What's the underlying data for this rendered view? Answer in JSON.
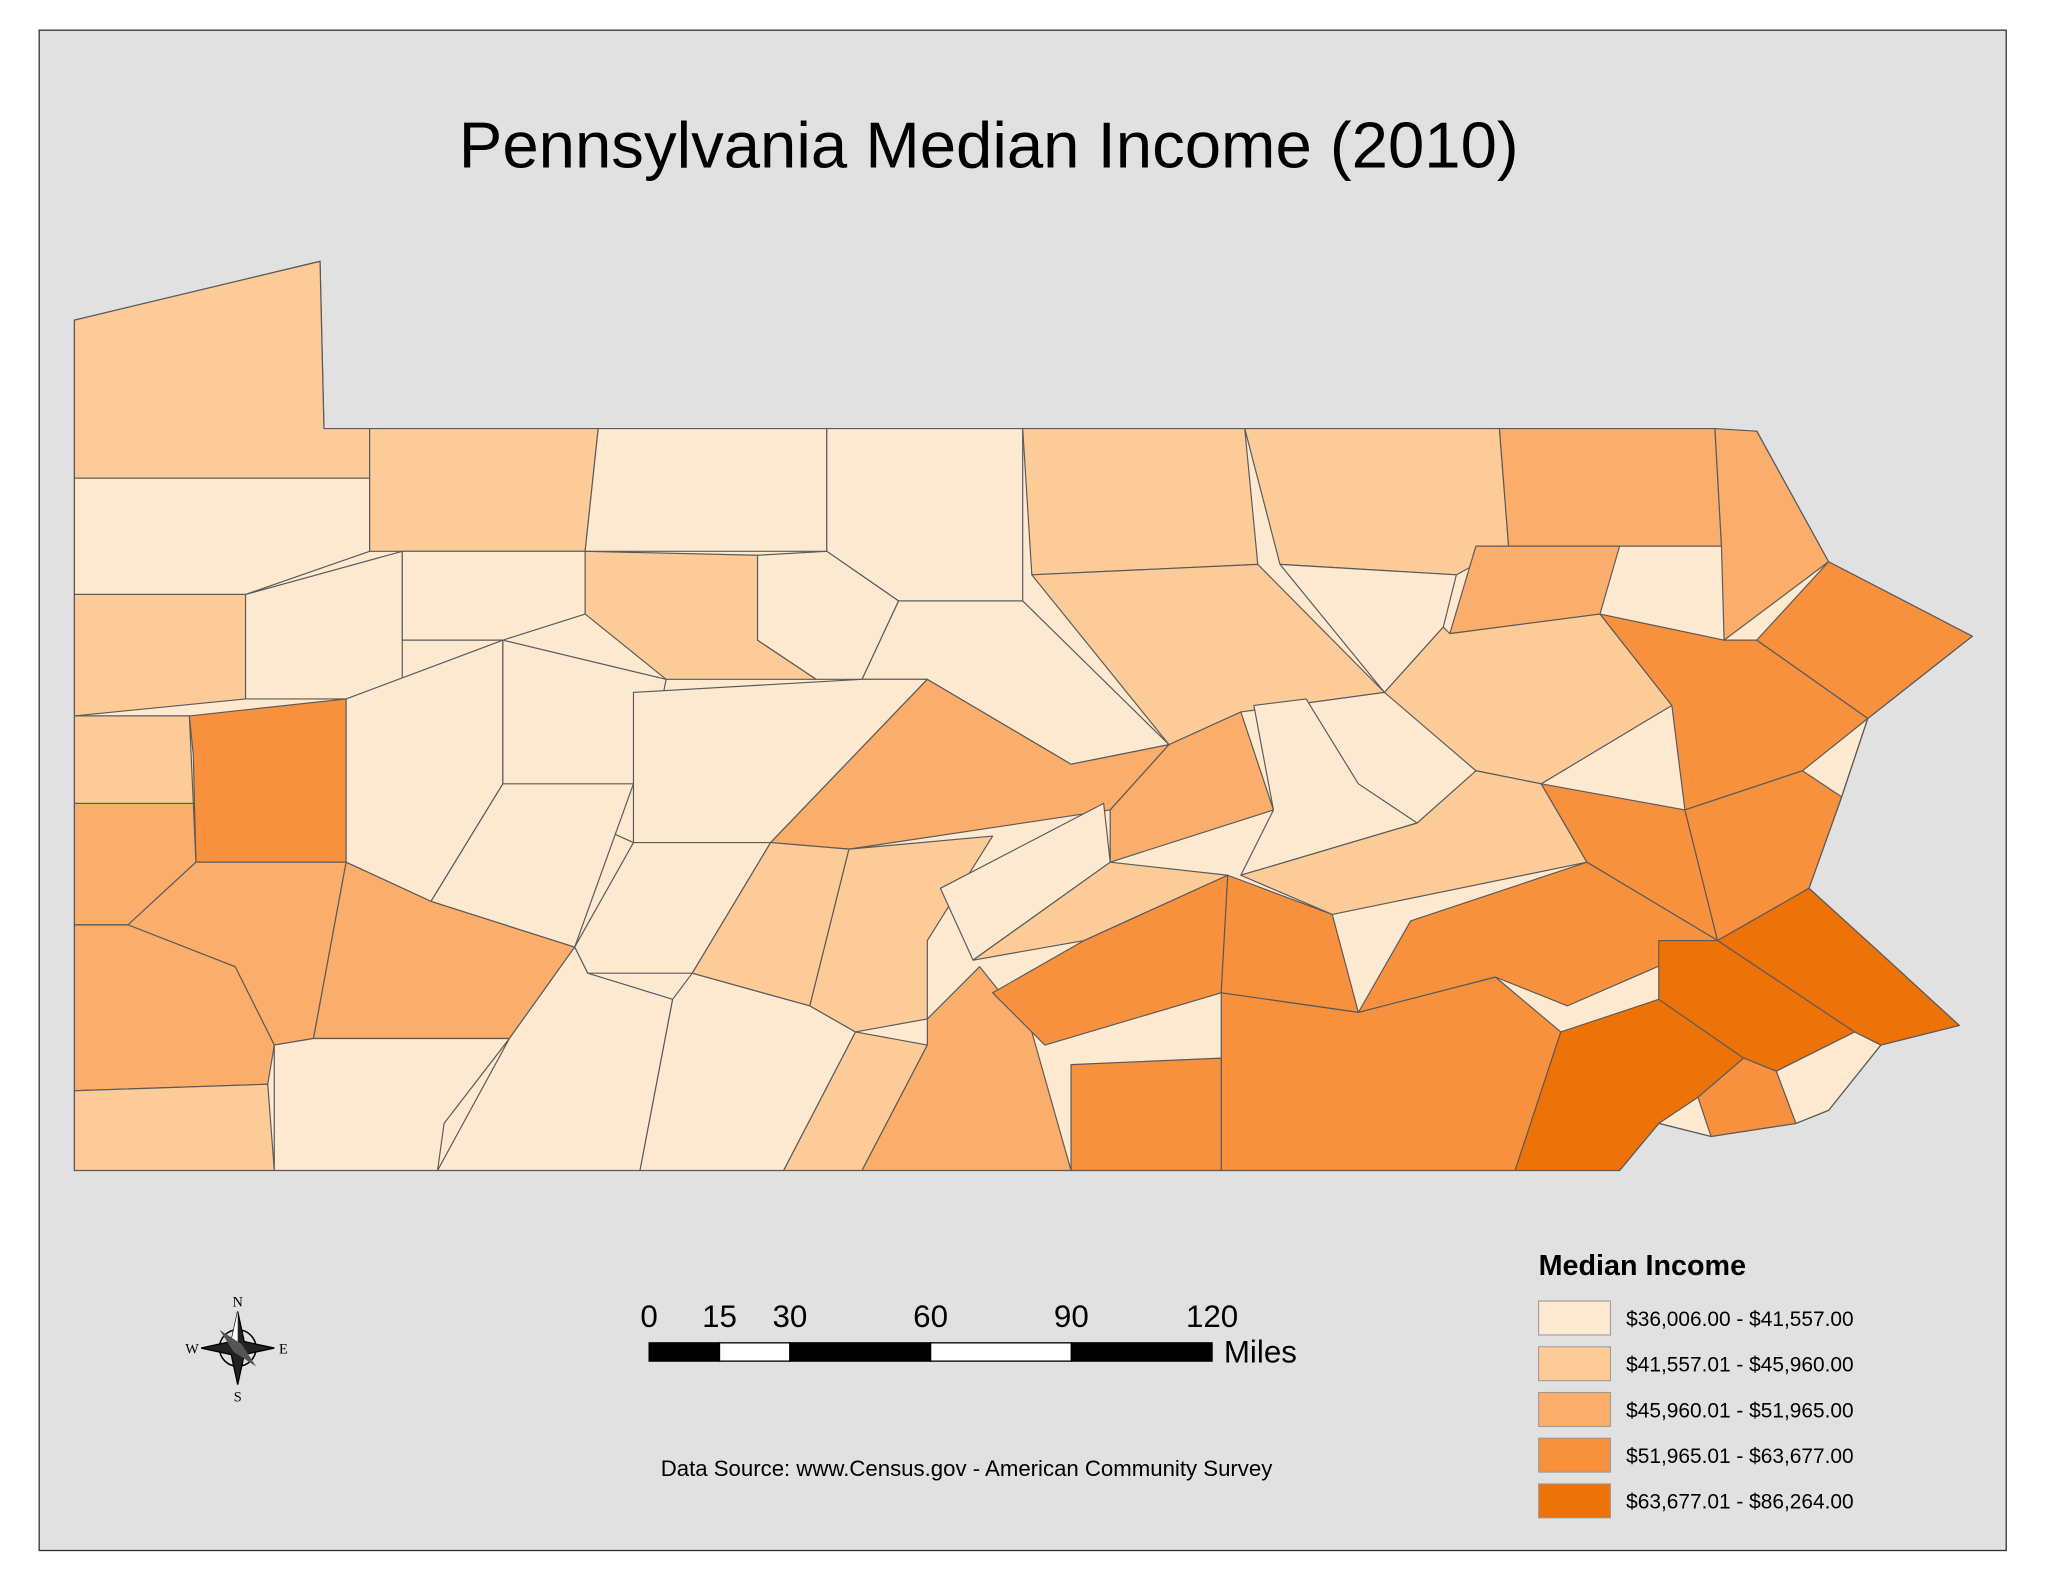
{
  "title": "Pennsylvania Median Income (2010)",
  "legend": {
    "title": "Median Income",
    "items": [
      {
        "label": "$36,006.00 - $41,557.00",
        "color": "#fde9cf"
      },
      {
        "label": "$41,557.01 - $45,960.00",
        "color": "#fccb98"
      },
      {
        "label": "$45,960.01 - $51,965.00",
        "color": "#fbad6b"
      },
      {
        "label": "$51,965.01 - $63,677.00",
        "color": "#f7913d"
      },
      {
        "label": "$63,677.01 - $86,264.00",
        "color": "#ed7308"
      }
    ]
  },
  "scale_bar": {
    "ticks": [
      0,
      15,
      30,
      60,
      90,
      120
    ],
    "unit": "Miles"
  },
  "compass": {
    "n": "N",
    "e": "E",
    "s": "S",
    "w": "W"
  },
  "source": "Data Source: www.Census.gov - American Community Survey",
  "county_classes": [
    1,
    0,
    1,
    0,
    0,
    1,
    1,
    2,
    2,
    3,
    1,
    0,
    0,
    1,
    0,
    0,
    1,
    0,
    2,
    1,
    1,
    3,
    0,
    0,
    0,
    2,
    2,
    0,
    1,
    3,
    3,
    3,
    2,
    2,
    2,
    2,
    1,
    0,
    0,
    0,
    0,
    0,
    1,
    1,
    0,
    1,
    2,
    1,
    3,
    3,
    3,
    3,
    3,
    4,
    4,
    4,
    3,
    0
  ]
}
